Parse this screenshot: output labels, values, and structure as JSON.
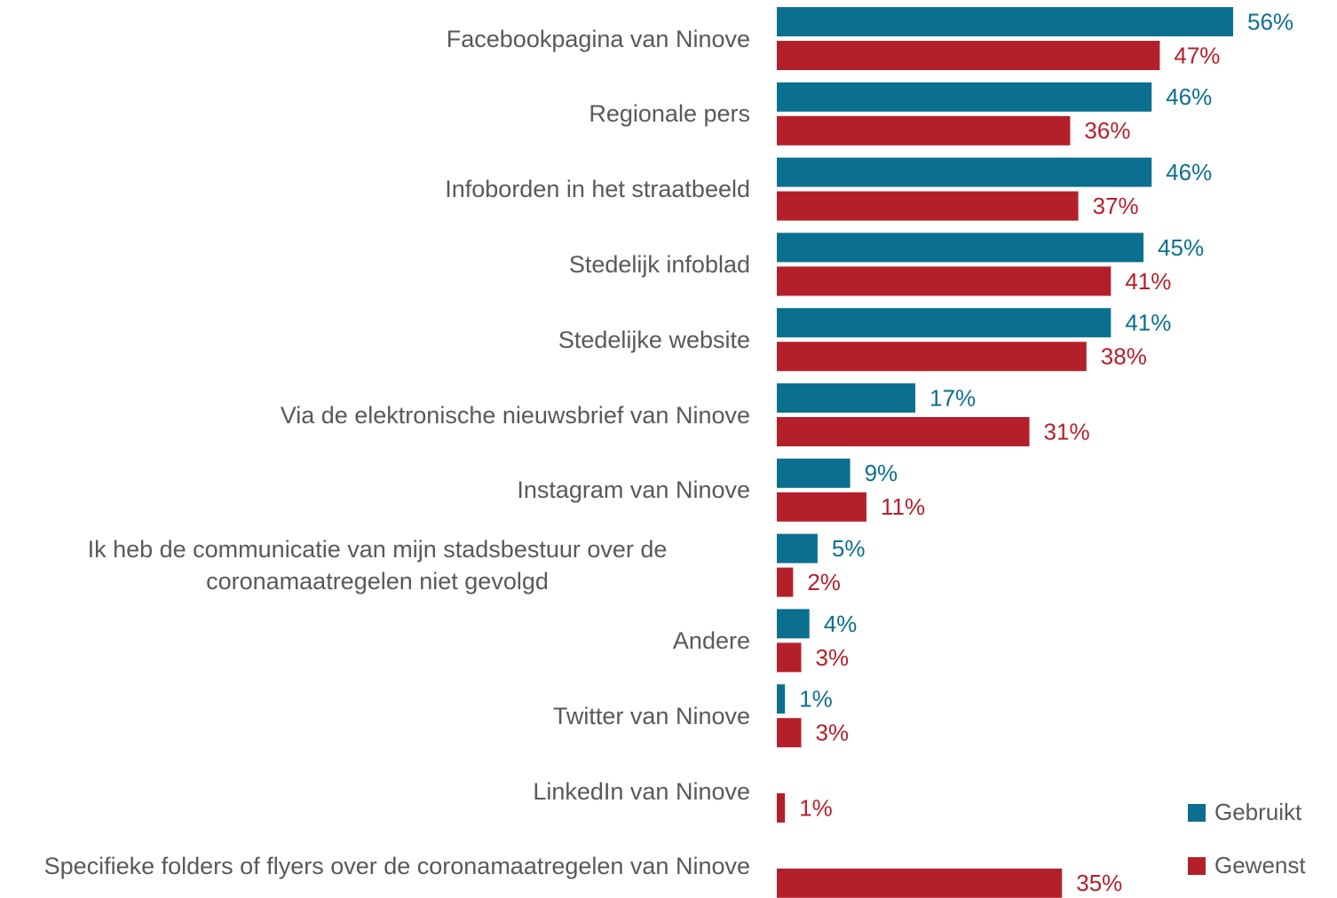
{
  "chart_data": {
    "type": "bar",
    "orientation": "horizontal",
    "categories": [
      "Facebookpagina van Ninove",
      "Regionale pers",
      "Infoborden in het straatbeeld",
      "Stedelijk infoblad",
      "Stedelijke website",
      "Via de elektronische nieuwsbrief van Ninove",
      "Instagram van Ninove",
      "Ik heb de communicatie van mijn stadsbestuur over de coronamaatregelen niet gevolgd",
      "Andere",
      "Twitter van Ninove",
      "LinkedIn van Ninove",
      "Specifieke folders of flyers over de coronamaatregelen van Ninove"
    ],
    "series": [
      {
        "name": "Gebruikt",
        "color": "#0b6f8f",
        "values": [
          56,
          46,
          46,
          45,
          41,
          17,
          9,
          5,
          4,
          1,
          null,
          null
        ],
        "value_labels": [
          "56%",
          "46%",
          "46%",
          "45%",
          "41%",
          "17%",
          "9%",
          "5%",
          "4%",
          "1%",
          null,
          null
        ]
      },
      {
        "name": "Gewenst",
        "color": "#b4202a",
        "values": [
          47,
          36,
          37,
          41,
          38,
          31,
          11,
          2,
          3,
          3,
          1,
          35
        ],
        "value_labels": [
          "47%",
          "36%",
          "37%",
          "41%",
          "38%",
          "31%",
          "11%",
          "2%",
          "3%",
          "3%",
          "1%",
          "35%"
        ]
      }
    ],
    "legend": "lower right"
  }
}
